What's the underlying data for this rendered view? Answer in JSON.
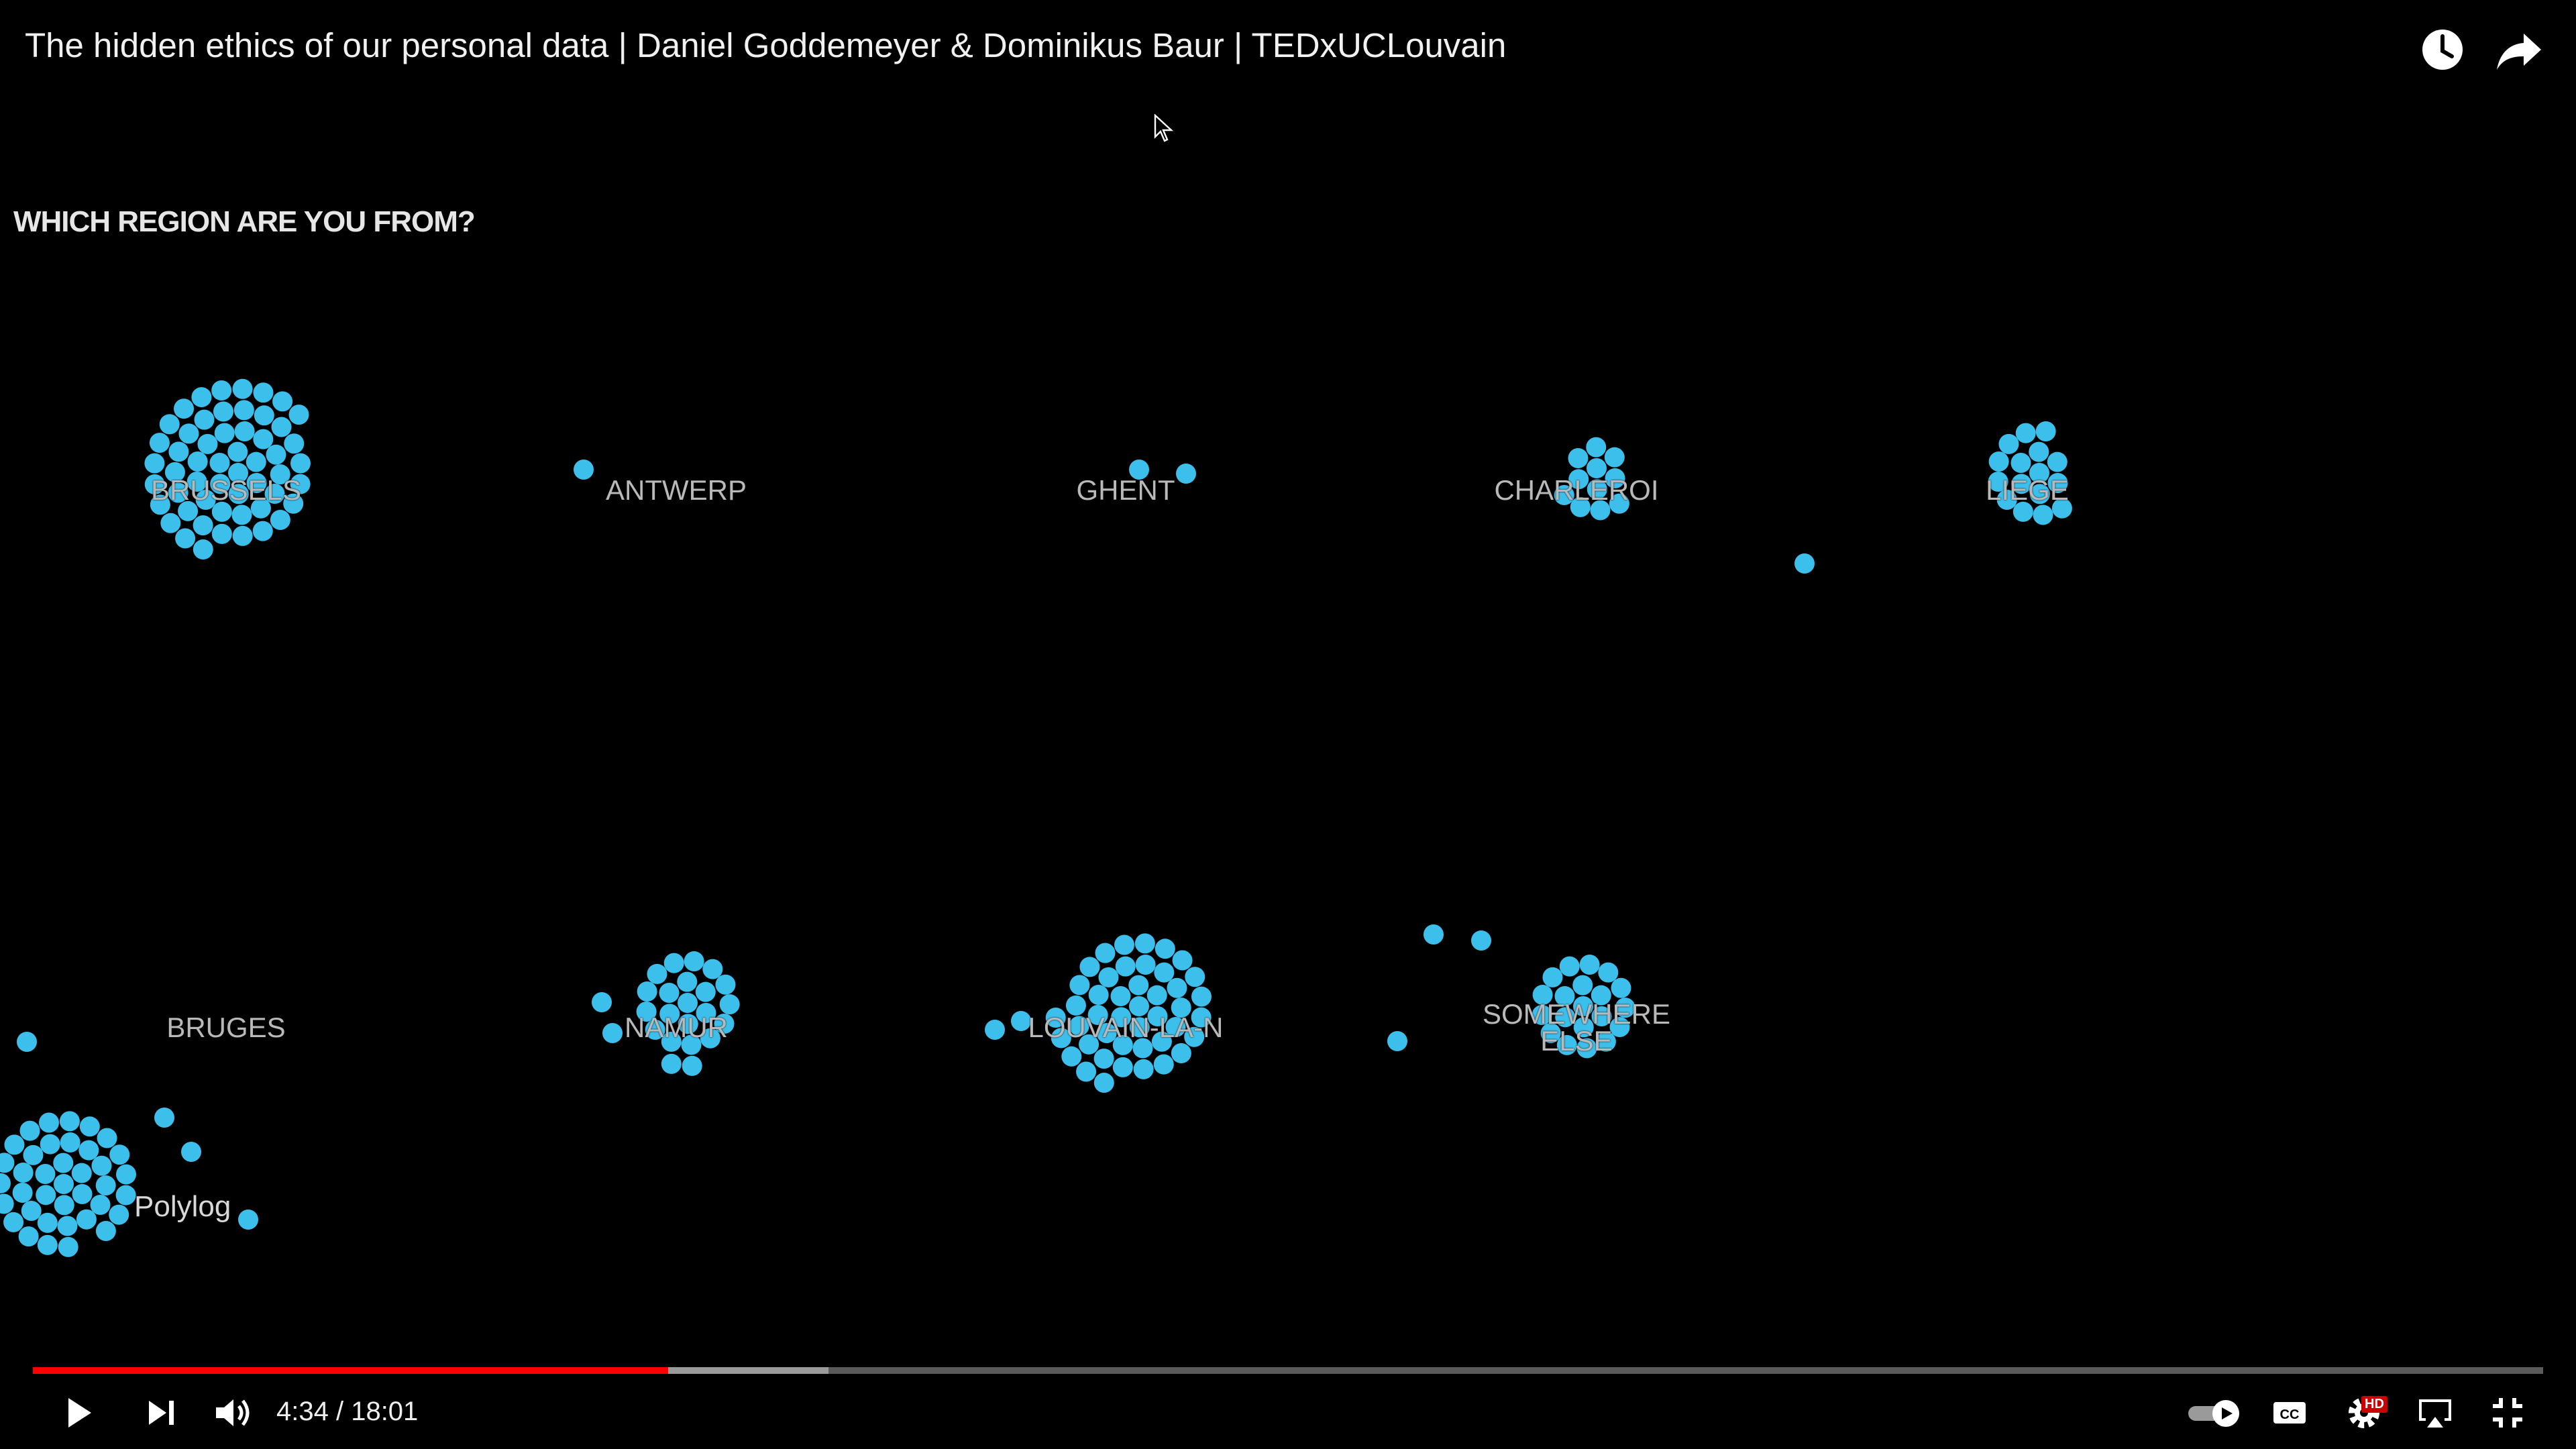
{
  "window": {
    "title": "The hidden ethics of our personal data | Daniel Goddemeyer & Dominikus Baur | TEDxUCLouvain"
  },
  "top_icons": [
    "watch-later-icon",
    "share-icon"
  ],
  "slide": {
    "question": "WHICH REGION ARE YOU FROM?",
    "regions": [
      {
        "label": "BRUSSELS",
        "count": 54
      },
      {
        "label": "ANTWERP",
        "count": 1
      },
      {
        "label": "GHENT",
        "count": 2
      },
      {
        "label": "CHARLEROI",
        "count": 11
      },
      {
        "label": "LIEGE",
        "count": 16
      },
      {
        "label": "BRUGES",
        "count": 0
      },
      {
        "label": "NAMUR",
        "count": 22
      },
      {
        "label": "LOUVAIN-LA-N",
        "count": 44
      },
      {
        "label": "SOMEWHERE ELSE",
        "count": 20
      }
    ],
    "watermark": "Polylog",
    "dot_color": "#3dbfec"
  },
  "player": {
    "current_time": "4:34",
    "separator": " / ",
    "duration": "18:01",
    "played_fraction": 0.253,
    "buffered_fraction": 0.317,
    "accent_color": "#ff0000",
    "hd_badge": "HD",
    "controls": [
      "play-icon",
      "next-icon",
      "volume-icon",
      "autoplay-toggle",
      "cc-icon",
      "settings-icon",
      "airplay-icon",
      "exit-fullscreen-icon"
    ]
  }
}
